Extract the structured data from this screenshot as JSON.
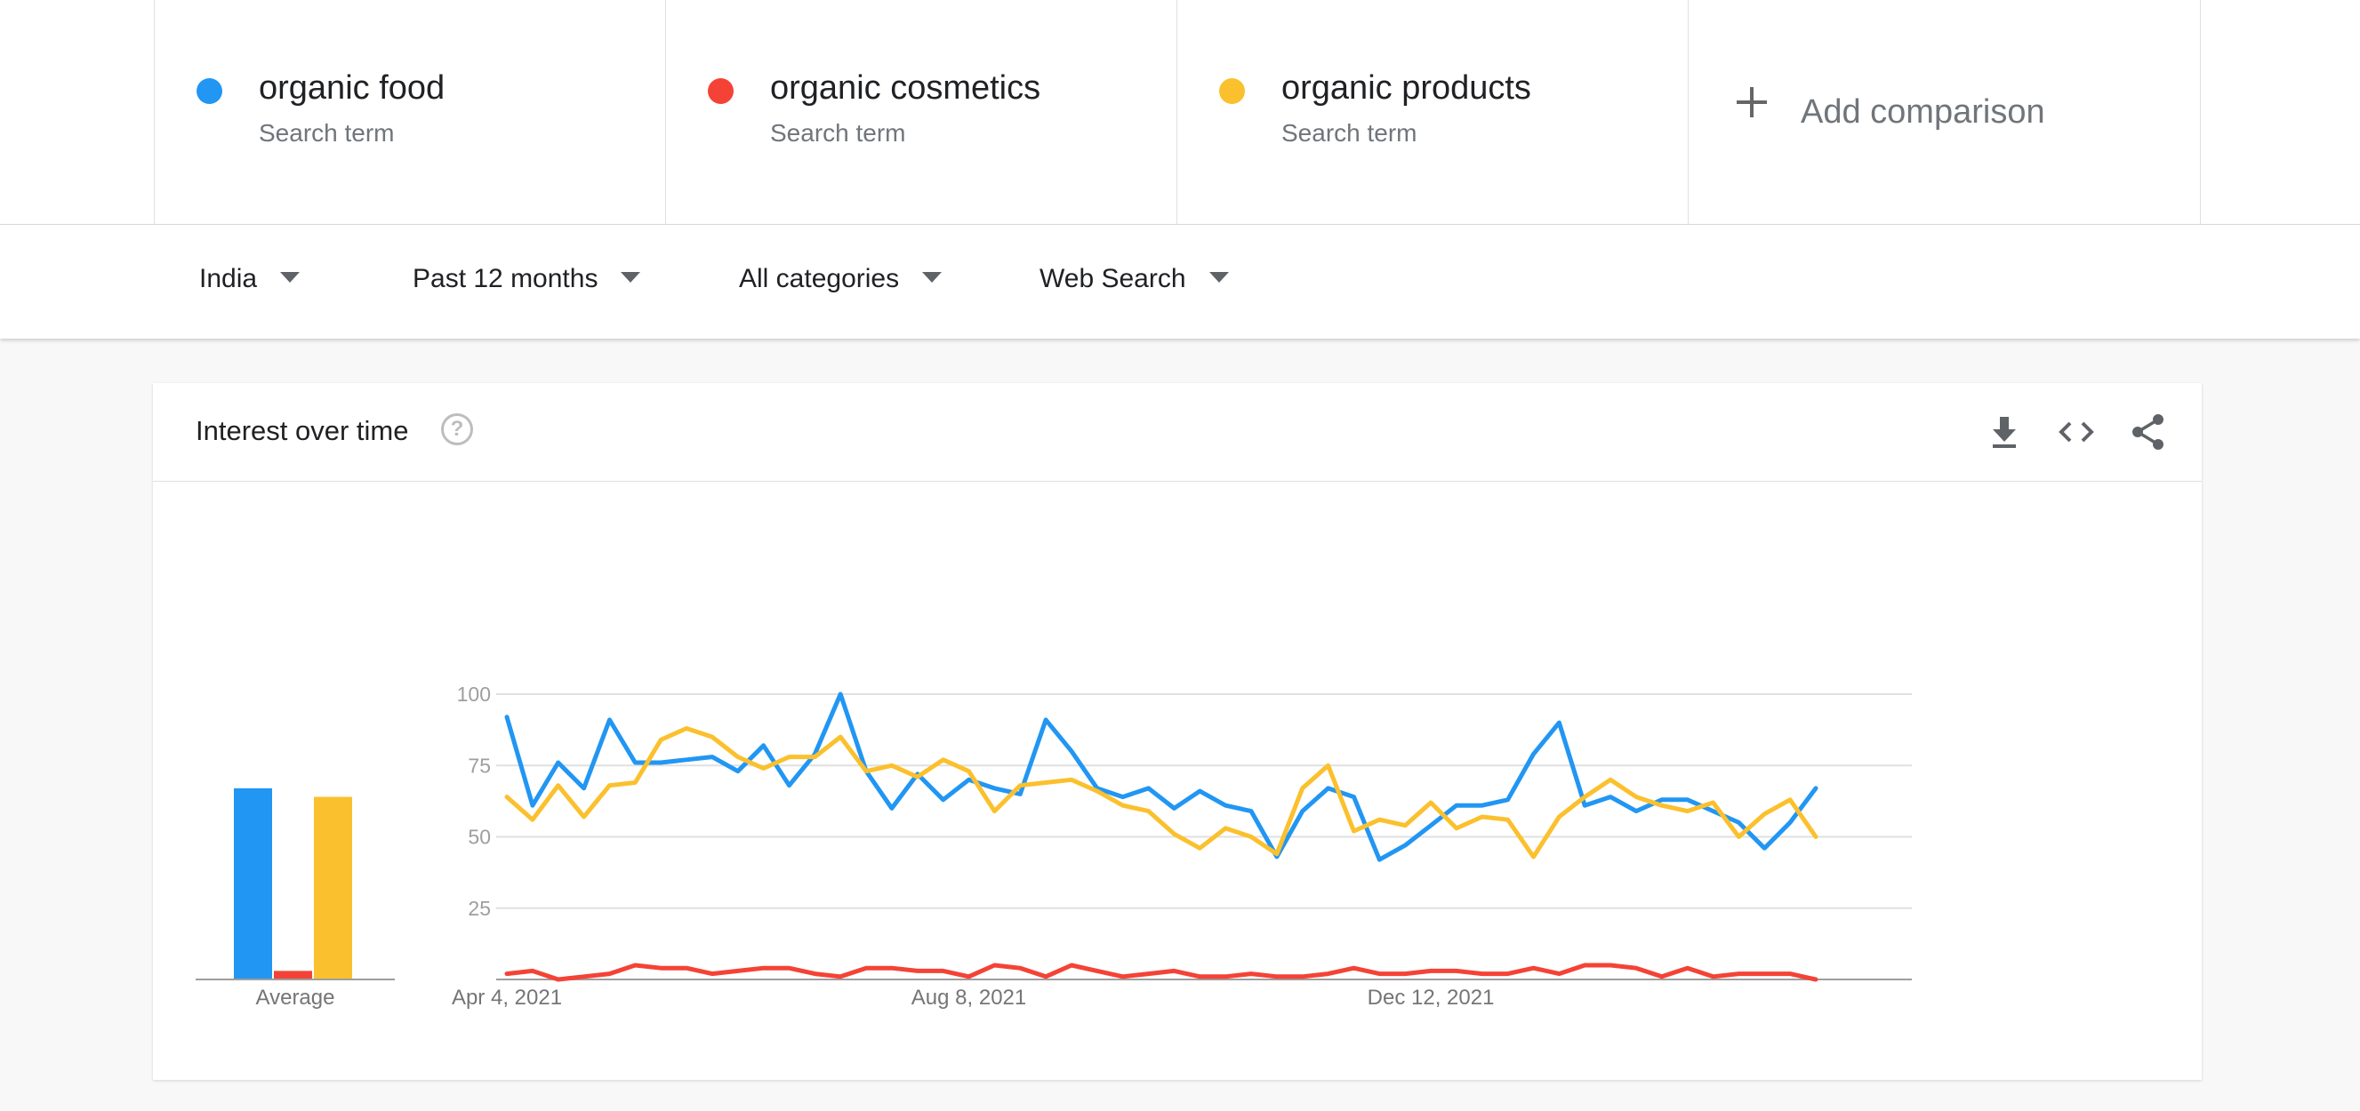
{
  "comparison": {
    "terms": [
      {
        "name": "organic food",
        "sub": "Search term",
        "color": "#2196f3"
      },
      {
        "name": "organic cosmetics",
        "sub": "Search term",
        "color": "#f44336"
      },
      {
        "name": "organic products",
        "sub": "Search term",
        "color": "#fbc02d"
      }
    ],
    "add_label": "Add comparison"
  },
  "filters": {
    "region": "India",
    "time": "Past 12 months",
    "category": "All categories",
    "property": "Web Search"
  },
  "card": {
    "title": "Interest over time",
    "help_glyph": "?",
    "tools": [
      "download-icon",
      "embed-code-icon",
      "share-icon"
    ]
  },
  "chart_data": {
    "type": "line",
    "ylim": [
      0,
      100
    ],
    "yticks": [
      25,
      50,
      75,
      100
    ],
    "x_labels": [
      {
        "index": 0,
        "label": "Apr 4, 2021"
      },
      {
        "index": 18,
        "label": "Aug 8, 2021"
      },
      {
        "index": 36,
        "label": "Dec 12, 2021"
      }
    ],
    "average_label": "Average",
    "averages": [
      67,
      3,
      64
    ],
    "series": [
      {
        "name": "organic food",
        "color": "#2196f3",
        "values": [
          92,
          61,
          76,
          67,
          91,
          76,
          76,
          77,
          78,
          73,
          82,
          68,
          79,
          100,
          73,
          60,
          72,
          63,
          70,
          67,
          65,
          91,
          80,
          67,
          64,
          67,
          60,
          66,
          61,
          59,
          43,
          59,
          67,
          64,
          42,
          47,
          54,
          61,
          61,
          63,
          79,
          90,
          61,
          64,
          59,
          63,
          63,
          59,
          55,
          46,
          55,
          67
        ]
      },
      {
        "name": "organic cosmetics",
        "color": "#f44336",
        "values": [
          2,
          3,
          0,
          1,
          2,
          5,
          4,
          4,
          2,
          3,
          4,
          4,
          2,
          1,
          4,
          4,
          3,
          3,
          1,
          5,
          4,
          1,
          5,
          3,
          1,
          2,
          3,
          1,
          1,
          2,
          1,
          1,
          2,
          4,
          2,
          2,
          3,
          3,
          2,
          2,
          4,
          2,
          5,
          5,
          4,
          1,
          4,
          1,
          2,
          2,
          2,
          0
        ]
      },
      {
        "name": "organic products",
        "color": "#fbc02d",
        "values": [
          64,
          56,
          68,
          57,
          68,
          69,
          84,
          88,
          85,
          78,
          74,
          78,
          78,
          85,
          73,
          75,
          71,
          77,
          73,
          59,
          68,
          69,
          70,
          66,
          61,
          59,
          51,
          46,
          53,
          50,
          44,
          67,
          75,
          52,
          56,
          54,
          62,
          53,
          57,
          56,
          43,
          57,
          64,
          70,
          64,
          61,
          59,
          62,
          50,
          58,
          63,
          50
        ]
      }
    ]
  }
}
